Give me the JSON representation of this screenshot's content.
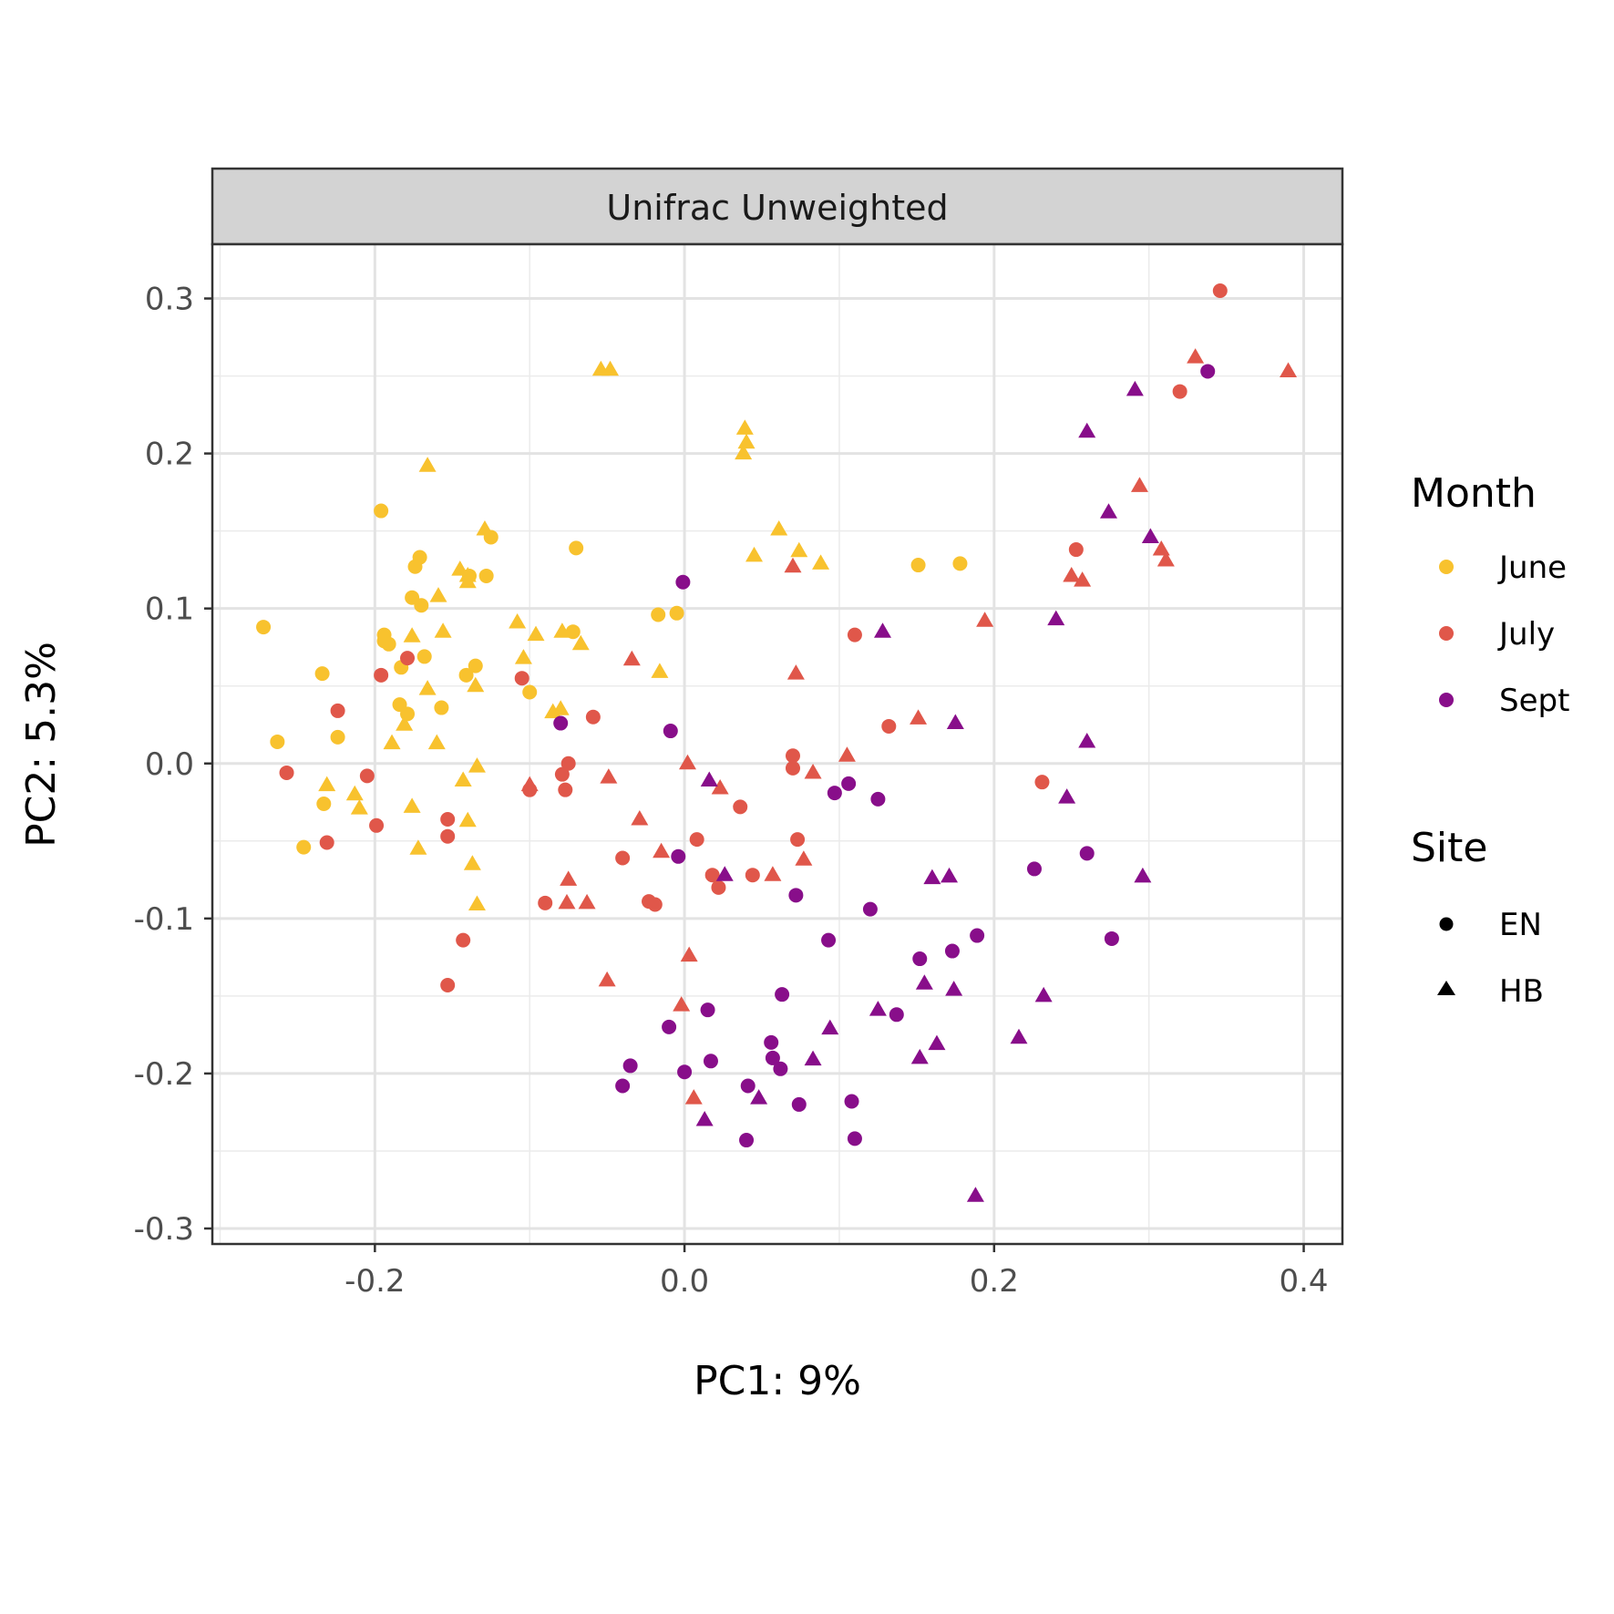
{
  "chart_data": {
    "type": "scatter",
    "facet_title": "Unifrac Unweighted",
    "xlabel": "PC1:  9%",
    "ylabel": "PC2:  5.3%",
    "xlim": [
      -0.305,
      0.425
    ],
    "ylim": [
      -0.31,
      0.335
    ],
    "x_ticks": [
      -0.2,
      0.0,
      0.2,
      0.4
    ],
    "x_tick_labels": [
      "-0.2",
      "0.0",
      "0.2",
      "0.4"
    ],
    "y_ticks": [
      -0.3,
      -0.2,
      -0.1,
      0.0,
      0.1,
      0.2,
      0.3
    ],
    "y_tick_labels": [
      "-0.3",
      "-0.2",
      "-0.1",
      "0.0",
      "0.1",
      "0.2",
      "0.3"
    ],
    "grid": true,
    "legend_position": "right",
    "legends": [
      {
        "title": "Month",
        "entries": [
          {
            "label": "June",
            "color": "#F8C22E"
          },
          {
            "label": "July",
            "color": "#E0574A"
          },
          {
            "label": "Sept",
            "color": "#880E8A"
          }
        ]
      },
      {
        "title": "Site",
        "entries": [
          {
            "label": "EN",
            "shape": "circle"
          },
          {
            "label": "HB",
            "shape": "triangle"
          }
        ]
      }
    ],
    "series": [
      {
        "name": "June",
        "site": "EN",
        "color": "#F8C22E",
        "shape": "circle",
        "points": [
          [
            -0.272,
            0.088
          ],
          [
            -0.196,
            0.163
          ],
          [
            -0.263,
            0.014
          ],
          [
            -0.234,
            0.058
          ],
          [
            -0.246,
            -0.054
          ],
          [
            -0.233,
            -0.026
          ],
          [
            -0.224,
            0.017
          ],
          [
            -0.194,
            0.083
          ],
          [
            -0.194,
            0.079
          ],
          [
            -0.191,
            0.077
          ],
          [
            -0.184,
            0.038
          ],
          [
            -0.183,
            0.062
          ],
          [
            -0.176,
            0.107
          ],
          [
            -0.174,
            0.127
          ],
          [
            -0.171,
            0.133
          ],
          [
            -0.17,
            0.102
          ],
          [
            -0.168,
            0.069
          ],
          [
            -0.179,
            0.032
          ],
          [
            -0.157,
            0.036
          ],
          [
            -0.141,
            0.057
          ],
          [
            -0.135,
            0.063
          ],
          [
            -0.139,
            0.121
          ],
          [
            -0.128,
            0.121
          ],
          [
            -0.125,
            0.146
          ],
          [
            -0.1,
            0.046
          ],
          [
            -0.07,
            0.139
          ],
          [
            -0.072,
            0.085
          ],
          [
            -0.017,
            0.096
          ],
          [
            -0.005,
            0.097
          ],
          [
            0.151,
            0.128
          ],
          [
            0.178,
            0.129
          ]
        ]
      },
      {
        "name": "June",
        "site": "HB",
        "color": "#F8C22E",
        "shape": "triangle",
        "points": [
          [
            -0.054,
            0.254
          ],
          [
            -0.048,
            0.254
          ],
          [
            0.039,
            0.216
          ],
          [
            0.04,
            0.207
          ],
          [
            0.038,
            0.2
          ],
          [
            -0.166,
            0.192
          ],
          [
            -0.129,
            0.151
          ],
          [
            -0.145,
            0.125
          ],
          [
            -0.14,
            0.121
          ],
          [
            -0.14,
            0.117
          ],
          [
            -0.159,
            0.108
          ],
          [
            -0.176,
            0.082
          ],
          [
            -0.156,
            0.085
          ],
          [
            -0.108,
            0.091
          ],
          [
            -0.104,
            0.068
          ],
          [
            -0.096,
            0.083
          ],
          [
            -0.079,
            0.085
          ],
          [
            -0.067,
            0.077
          ],
          [
            -0.016,
            0.059
          ],
          [
            -0.135,
            0.05
          ],
          [
            -0.166,
            0.048
          ],
          [
            -0.181,
            0.025
          ],
          [
            -0.189,
            0.013
          ],
          [
            -0.16,
            0.013
          ],
          [
            -0.085,
            0.033
          ],
          [
            -0.08,
            0.035
          ],
          [
            -0.231,
            -0.014
          ],
          [
            -0.213,
            -0.02
          ],
          [
            -0.21,
            -0.029
          ],
          [
            -0.176,
            -0.028
          ],
          [
            -0.143,
            -0.011
          ],
          [
            -0.134,
            -0.002
          ],
          [
            -0.14,
            -0.037
          ],
          [
            -0.172,
            -0.055
          ],
          [
            -0.137,
            -0.065
          ],
          [
            -0.134,
            -0.091
          ],
          [
            0.061,
            0.151
          ],
          [
            0.045,
            0.134
          ],
          [
            0.074,
            0.137
          ],
          [
            0.088,
            0.129
          ]
        ]
      },
      {
        "name": "July",
        "site": "EN",
        "color": "#E0574A",
        "shape": "circle",
        "points": [
          [
            0.346,
            0.305
          ],
          [
            0.32,
            0.24
          ],
          [
            0.253,
            0.138
          ],
          [
            -0.179,
            0.068
          ],
          [
            -0.196,
            0.057
          ],
          [
            -0.224,
            0.034
          ],
          [
            -0.105,
            0.055
          ],
          [
            -0.059,
            0.03
          ],
          [
            0.11,
            0.083
          ],
          [
            0.132,
            0.024
          ],
          [
            -0.257,
            -0.006
          ],
          [
            -0.205,
            -0.008
          ],
          [
            -0.199,
            -0.04
          ],
          [
            -0.231,
            -0.051
          ],
          [
            -0.153,
            -0.036
          ],
          [
            -0.153,
            -0.047
          ],
          [
            -0.143,
            -0.114
          ],
          [
            -0.153,
            -0.143
          ],
          [
            -0.1,
            -0.017
          ],
          [
            -0.075,
            0.0
          ],
          [
            -0.079,
            -0.007
          ],
          [
            -0.077,
            -0.017
          ],
          [
            -0.04,
            -0.061
          ],
          [
            -0.09,
            -0.09
          ],
          [
            -0.023,
            -0.089
          ],
          [
            -0.019,
            -0.091
          ],
          [
            0.008,
            -0.049
          ],
          [
            0.018,
            -0.072
          ],
          [
            0.022,
            -0.08
          ],
          [
            0.036,
            -0.028
          ],
          [
            0.044,
            -0.072
          ],
          [
            0.07,
            0.005
          ],
          [
            0.07,
            -0.003
          ],
          [
            0.073,
            -0.049
          ],
          [
            0.231,
            -0.012
          ]
        ]
      },
      {
        "name": "July",
        "site": "HB",
        "color": "#E0574A",
        "shape": "triangle",
        "points": [
          [
            0.39,
            0.253
          ],
          [
            0.33,
            0.262
          ],
          [
            0.294,
            0.179
          ],
          [
            0.308,
            0.138
          ],
          [
            0.311,
            0.131
          ],
          [
            0.25,
            0.121
          ],
          [
            0.257,
            0.118
          ],
          [
            0.194,
            0.092
          ],
          [
            0.07,
            0.127
          ],
          [
            0.072,
            0.058
          ],
          [
            0.151,
            0.029
          ],
          [
            0.105,
            0.005
          ],
          [
            0.083,
            -0.006
          ],
          [
            0.077,
            -0.062
          ],
          [
            -0.034,
            0.067
          ],
          [
            0.002,
            0.0
          ],
          [
            0.023,
            -0.016
          ],
          [
            -0.049,
            -0.009
          ],
          [
            -0.1,
            -0.014
          ],
          [
            -0.029,
            -0.036
          ],
          [
            -0.015,
            -0.057
          ],
          [
            -0.075,
            -0.075
          ],
          [
            -0.076,
            -0.09
          ],
          [
            -0.063,
            -0.09
          ],
          [
            0.057,
            -0.072
          ],
          [
            0.003,
            -0.124
          ],
          [
            -0.05,
            -0.14
          ],
          [
            -0.002,
            -0.156
          ],
          [
            0.006,
            -0.216
          ]
        ]
      },
      {
        "name": "Sept",
        "site": "EN",
        "color": "#880E8A",
        "shape": "circle",
        "points": [
          [
            0.338,
            0.253
          ],
          [
            -0.001,
            0.117
          ],
          [
            -0.009,
            0.021
          ],
          [
            -0.08,
            0.026
          ],
          [
            -0.004,
            -0.06
          ],
          [
            0.097,
            -0.019
          ],
          [
            0.106,
            -0.013
          ],
          [
            0.125,
            -0.023
          ],
          [
            0.072,
            -0.085
          ],
          [
            0.12,
            -0.094
          ],
          [
            0.093,
            -0.114
          ],
          [
            0.152,
            -0.126
          ],
          [
            0.173,
            -0.121
          ],
          [
            0.189,
            -0.111
          ],
          [
            0.226,
            -0.068
          ],
          [
            0.26,
            -0.058
          ],
          [
            0.276,
            -0.113
          ],
          [
            0.015,
            -0.159
          ],
          [
            -0.01,
            -0.17
          ],
          [
            0.063,
            -0.149
          ],
          [
            0.137,
            -0.162
          ],
          [
            -0.035,
            -0.195
          ],
          [
            -0.04,
            -0.208
          ],
          [
            0.0,
            -0.199
          ],
          [
            0.017,
            -0.192
          ],
          [
            0.041,
            -0.208
          ],
          [
            0.056,
            -0.18
          ],
          [
            0.057,
            -0.19
          ],
          [
            0.062,
            -0.197
          ],
          [
            0.074,
            -0.22
          ],
          [
            0.108,
            -0.218
          ],
          [
            0.04,
            -0.243
          ],
          [
            0.11,
            -0.242
          ]
        ]
      },
      {
        "name": "Sept",
        "site": "HB",
        "color": "#880E8A",
        "shape": "triangle",
        "points": [
          [
            0.291,
            0.241
          ],
          [
            0.26,
            0.214
          ],
          [
            0.274,
            0.162
          ],
          [
            0.301,
            0.146
          ],
          [
            0.24,
            0.093
          ],
          [
            0.128,
            0.085
          ],
          [
            0.175,
            0.026
          ],
          [
            0.26,
            0.014
          ],
          [
            0.247,
            -0.022
          ],
          [
            0.296,
            -0.073
          ],
          [
            0.16,
            -0.074
          ],
          [
            0.171,
            -0.073
          ],
          [
            0.016,
            -0.011
          ],
          [
            0.026,
            -0.072
          ],
          [
            0.155,
            -0.142
          ],
          [
            0.174,
            -0.146
          ],
          [
            0.232,
            -0.15
          ],
          [
            0.125,
            -0.159
          ],
          [
            0.094,
            -0.171
          ],
          [
            0.083,
            -0.191
          ],
          [
            0.152,
            -0.19
          ],
          [
            0.163,
            -0.181
          ],
          [
            0.216,
            -0.177
          ],
          [
            0.048,
            -0.216
          ],
          [
            0.013,
            -0.23
          ],
          [
            0.188,
            -0.279
          ]
        ]
      }
    ]
  }
}
